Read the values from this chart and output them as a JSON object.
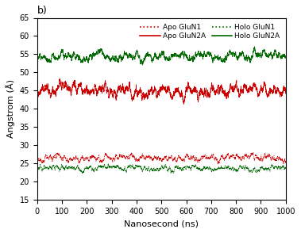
{
  "title": "b)",
  "xlabel": "Nanosecond (ns)",
  "ylabel": "Angstrom (Å)",
  "xlim": [
    0,
    1000
  ],
  "ylim": [
    15,
    65
  ],
  "yticks": [
    15,
    20,
    25,
    30,
    35,
    40,
    45,
    50,
    55,
    60,
    65
  ],
  "xticks": [
    0,
    100,
    200,
    300,
    400,
    500,
    600,
    700,
    800,
    900,
    1000
  ],
  "series": [
    {
      "name": "Apo GluN2A",
      "color": "#cc0000",
      "linestyle": "-",
      "mean": 45.0,
      "sigma": 0.18,
      "theta": 0.015,
      "seed": 42
    },
    {
      "name": "Holo GluN2A",
      "color": "#006600",
      "linestyle": "-",
      "mean": 54.5,
      "sigma": 0.12,
      "theta": 0.012,
      "seed": 7
    },
    {
      "name": "Apo GluN1",
      "color": "#cc0000",
      "linestyle": ":",
      "mean": 26.5,
      "sigma": 0.1,
      "theta": 0.018,
      "seed": 12
    },
    {
      "name": "Holo GluN1",
      "color": "#006600",
      "linestyle": ":",
      "mean": 23.5,
      "sigma": 0.09,
      "theta": 0.018,
      "seed": 99
    }
  ],
  "legend_entries": [
    {
      "name": "Apo GluN1",
      "color": "#cc0000",
      "linestyle": ":"
    },
    {
      "name": "Apo GluN2A",
      "color": "#cc0000",
      "linestyle": "-"
    },
    {
      "name": "Holo GluN1",
      "color": "#006600",
      "linestyle": ":"
    },
    {
      "name": "Holo GluN2A",
      "color": "#006600",
      "linestyle": "-"
    }
  ],
  "background_color": "#ffffff",
  "n_points": 10000,
  "figsize": [
    3.79,
    2.94
  ],
  "dpi": 100
}
